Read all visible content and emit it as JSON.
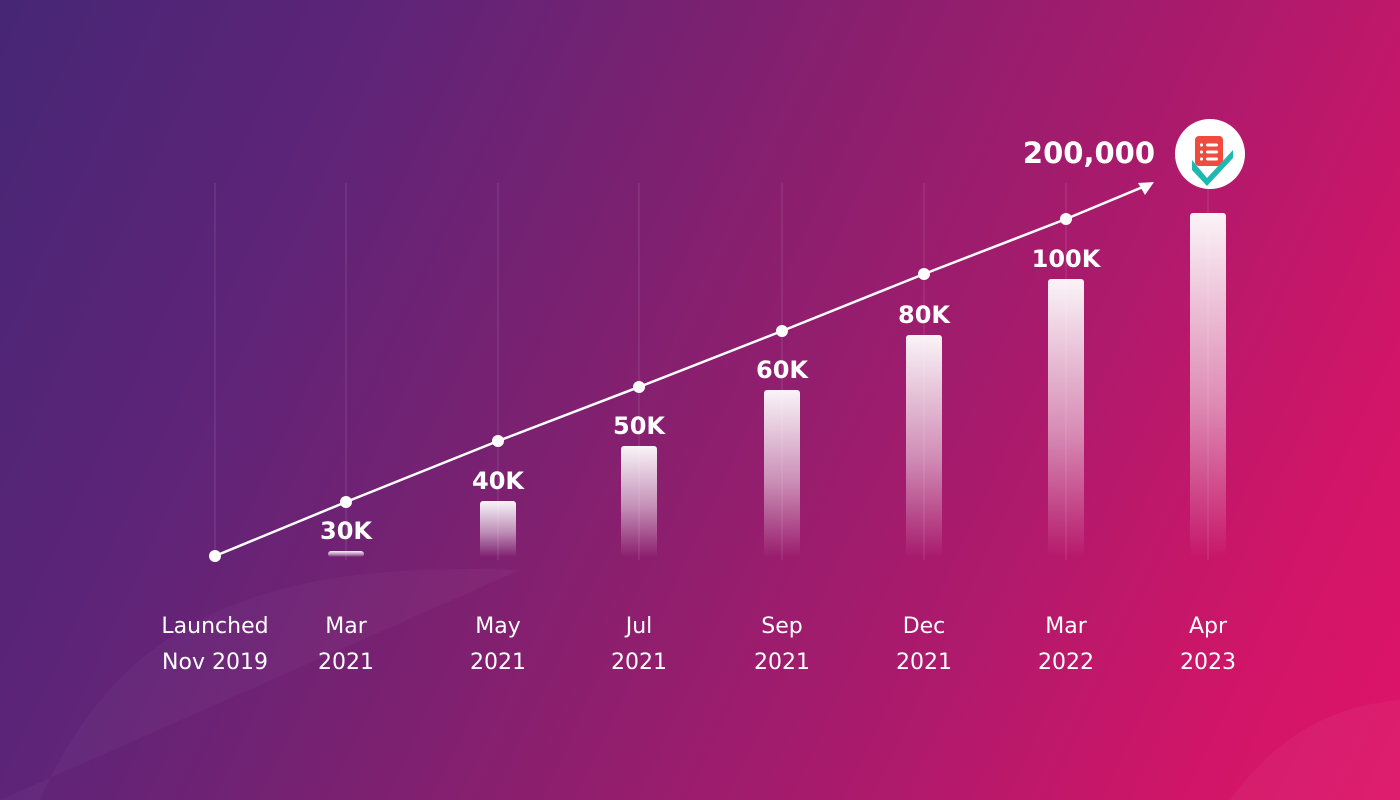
{
  "chart_data": {
    "type": "bar",
    "categories": [
      [
        "Launched",
        "Nov 2019"
      ],
      [
        "Mar",
        "2021"
      ],
      [
        "May",
        "2021"
      ],
      [
        "Jul",
        "2021"
      ],
      [
        "Sep",
        "2021"
      ],
      [
        "Dec",
        "2021"
      ],
      [
        "Mar",
        "2022"
      ],
      [
        "Apr",
        "2023"
      ]
    ],
    "values": [
      0,
      30000,
      40000,
      50000,
      60000,
      80000,
      100000,
      200000
    ],
    "labels": [
      "",
      "30K",
      "40K",
      "50K",
      "60K",
      "80K",
      "100K",
      "200,000"
    ],
    "trend_line": true,
    "grid": "vertical",
    "legend": "none"
  },
  "colors": {
    "background_start": "#472676",
    "background_end": "#de1469",
    "bar": "#ffffff",
    "line": "#ffffff",
    "text": "#ffffff"
  },
  "icon": "checklist-app-icon"
}
